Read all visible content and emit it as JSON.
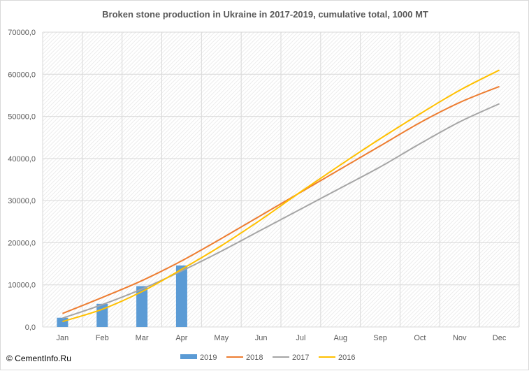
{
  "chart_data": {
    "type": "bar+line",
    "title": "Broken stone production in Ukraine in 2017-2019,  cumulative total, 1000  MT",
    "xlabel": "",
    "ylabel": "",
    "categories": [
      "Jan",
      "Feb",
      "Mar",
      "Apr",
      "May",
      "Jun",
      "Jul",
      "Aug",
      "Sep",
      "Oct",
      "Nov",
      "Dec"
    ],
    "ylim": [
      0,
      70000
    ],
    "yticks": [
      "0,0",
      "10000,0",
      "20000,0",
      "30000,0",
      "40000,0",
      "50000,0",
      "60000,0",
      "70000,0"
    ],
    "grid": true,
    "legend": "bottom",
    "series": [
      {
        "name": "2019",
        "kind": "bar",
        "color": "#5b9bd5",
        "values": [
          2200,
          5500,
          9700,
          14600,
          null,
          null,
          null,
          null,
          null,
          null,
          null,
          null
        ]
      },
      {
        "name": "2018",
        "kind": "line",
        "color": "#ed7d31",
        "values": [
          3200,
          7000,
          11000,
          15700,
          21000,
          26500,
          32000,
          37500,
          43000,
          48500,
          53300,
          57100
        ]
      },
      {
        "name": "2017",
        "kind": "line",
        "color": "#a5a5a5",
        "values": [
          2100,
          5300,
          9000,
          13300,
          18000,
          23000,
          28000,
          33000,
          38000,
          43500,
          48700,
          53000
        ]
      },
      {
        "name": "2016",
        "kind": "line",
        "color": "#ffc000",
        "values": [
          1300,
          4200,
          8400,
          13700,
          19300,
          25500,
          32100,
          38500,
          44700,
          50600,
          56200,
          61000
        ]
      }
    ]
  },
  "watermark": "© CementInfo.Ru"
}
